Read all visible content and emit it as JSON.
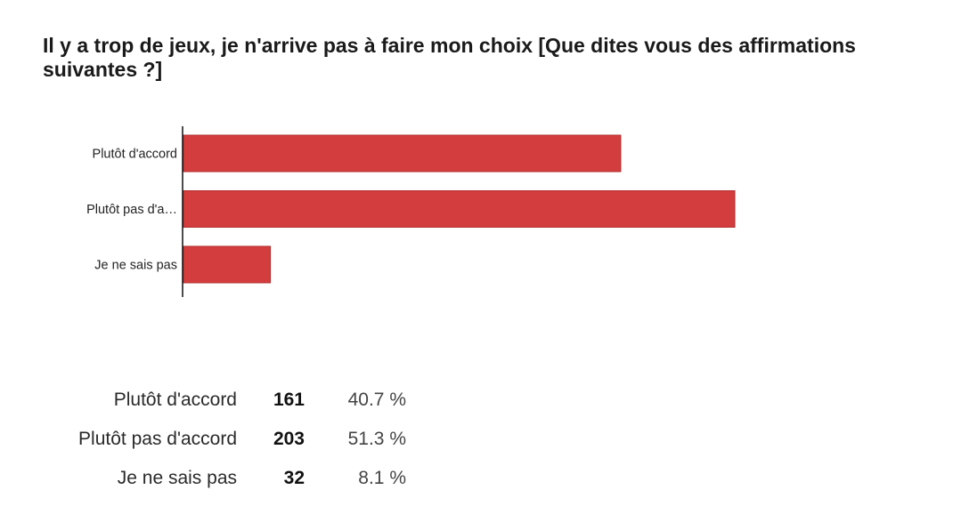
{
  "chart_data": {
    "type": "bar",
    "orientation": "horizontal",
    "title": "Il y a trop de jeux, je n'arrive pas à faire mon choix [Que dites vous des affirmations suivantes ?]",
    "categories": [
      "Plutôt d'accord",
      "Plutôt pas d'a…",
      "Je ne sais pas"
    ],
    "values": [
      161,
      203,
      32
    ],
    "xlim": [
      0,
      203
    ],
    "grid": false,
    "bar_color": "#d43d3d"
  },
  "summary": {
    "rows": [
      {
        "label": "Plutôt d'accord",
        "count": "161",
        "percent": "40.7 %"
      },
      {
        "label": "Plutôt pas d'accord",
        "count": "203",
        "percent": "51.3 %"
      },
      {
        "label": "Je ne sais pas",
        "count": "32",
        "percent": "8.1 %"
      }
    ]
  }
}
